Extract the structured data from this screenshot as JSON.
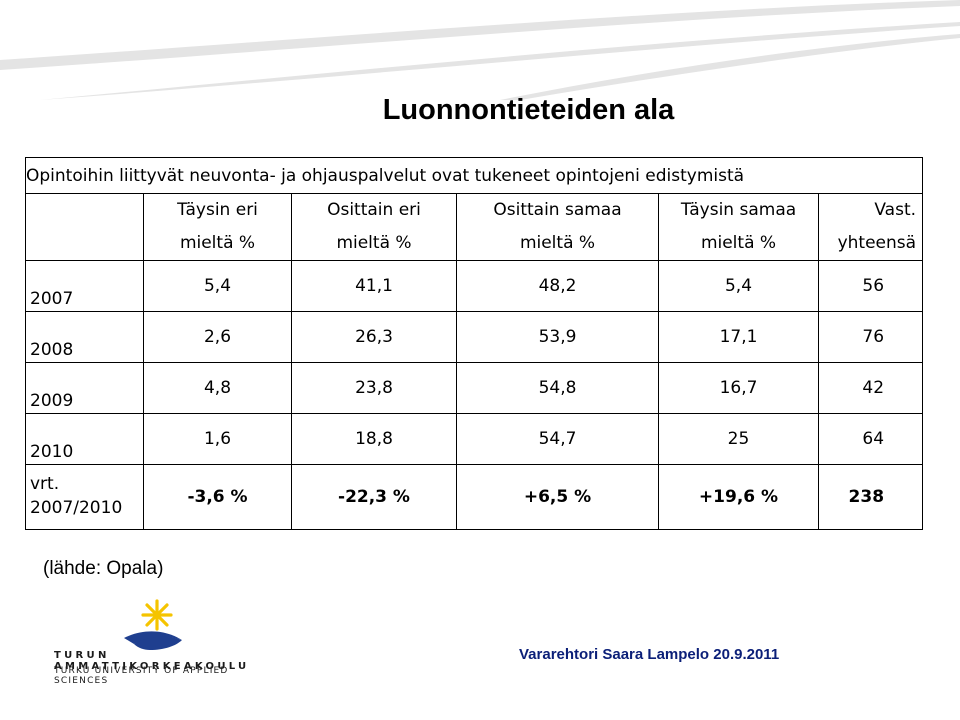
{
  "slide": {
    "title": "Luonnontieteiden ala",
    "source": "(lähde: Opala)",
    "footer": "Vararehtori Saara Lampelo 20.9.2011"
  },
  "table": {
    "caption": "Opintoihin liittyvät neuvonta- ja ohjauspalvelut ovat tukeneet opintojeni edistymistä",
    "headers": [
      {
        "line1": "Täysin eri",
        "line2": "mieltä %"
      },
      {
        "line1": "Osittain eri",
        "line2": "mieltä %"
      },
      {
        "line1": "Osittain samaa",
        "line2": "mieltä %"
      },
      {
        "line1": "Täysin samaa",
        "line2": "mieltä %"
      },
      {
        "line1": "Vast.",
        "line2": "yhteensä"
      }
    ],
    "rows": [
      {
        "year": "2007",
        "v": [
          "5,4",
          "41,1",
          "48,2",
          "5,4"
        ],
        "total": "56"
      },
      {
        "year": "2008",
        "v": [
          "2,6",
          "26,3",
          "53,9",
          "17,1"
        ],
        "total": "76"
      },
      {
        "year": "2009",
        "v": [
          "4,8",
          "23,8",
          "54,8",
          "16,7"
        ],
        "total": "42"
      },
      {
        "year": "2010",
        "v": [
          "1,6",
          "18,8",
          "54,7",
          "25"
        ],
        "total": "64"
      }
    ],
    "comparison": {
      "label1": "vrt.",
      "label2": "2007/2010",
      "v": [
        "-3,6 %",
        "-22,3 %",
        "+6,5 %",
        "+19,6 %"
      ],
      "total": "238"
    }
  },
  "logo": {
    "name": "TURUN AMMATTIKORKEAKOULU",
    "subtitle": "TURKU UNIVERSITY OF APPLIED SCIENCES",
    "icon": "sun-star-wave-icon"
  },
  "colors": {
    "stripe_gray": "#d9d9d9",
    "logo_blue": "#1f3f8f",
    "logo_yellow": "#f5c400",
    "footer_blue": "#0b1f78"
  }
}
